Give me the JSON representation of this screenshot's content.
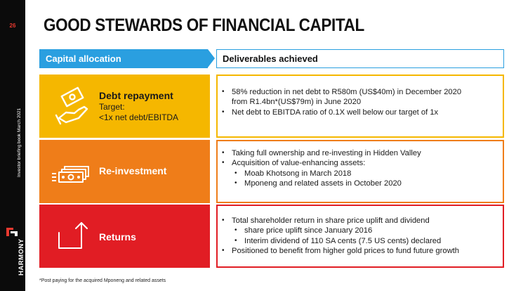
{
  "page": {
    "number": "26",
    "sidebar_text": "Investor briefing book March 2021",
    "brand": "HARMONY"
  },
  "title": "GOOD STEWARDS OF FINANCIAL CAPITAL",
  "headers": {
    "capital_allocation": "Capital allocation",
    "deliverables": "Deliverables achieved"
  },
  "rows": [
    {
      "color": "#f5b700",
      "icon": "hand-money-icon",
      "title": "Debt repayment",
      "sub1": "Target:",
      "sub2": "<1x net debt/EBITDA",
      "items": [
        "58% reduction in net debt to R580m (US$40m) in December 2020",
        "from R1.4bn*(US$79m) in June 2020",
        "Net debt to EBITDA ratio of 0.1X well below our target of 1x"
      ]
    },
    {
      "color": "#ef7d19",
      "icon": "cash-stack-icon",
      "title": "Re-investment",
      "items": [
        "Taking full ownership and re-investing in Hidden Valley",
        "Acquisition of value-enhancing assets:",
        "Moab Khotsong in March 2018",
        "Mponeng and related assets in October 2020"
      ]
    },
    {
      "color": "#e11d24",
      "icon": "growth-arrow-icon",
      "title": "Returns",
      "items": [
        "Total shareholder return in share price uplift and dividend",
        "share price uplift since January 2016",
        "Interim dividend of 110 SA cents (7.5 US cents) declared",
        "Positioned to benefit from higher gold prices to fund future growth"
      ]
    }
  ],
  "bullet": "•",
  "footnote": "*Post paying for the acquired Mponeng and related assets"
}
